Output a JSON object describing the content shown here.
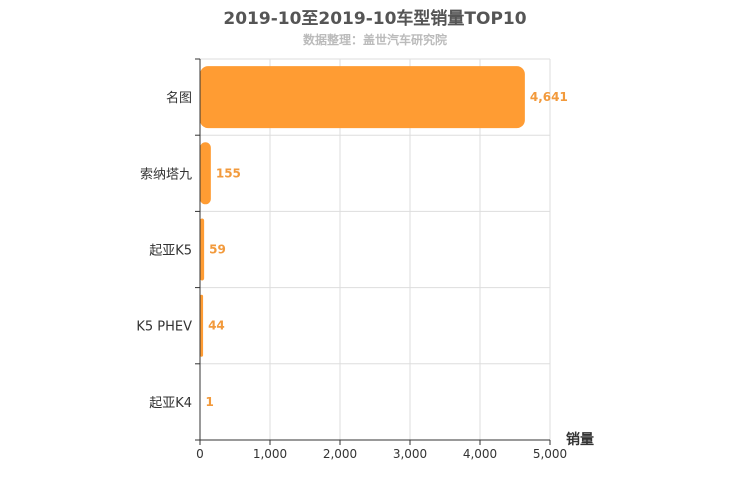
{
  "chart_data": {
    "type": "bar",
    "orientation": "horizontal",
    "title": "2019-10至2019-10车型销量TOP10",
    "subtitle": "数据整理：盖世汽车研究院",
    "xlabel": "销量",
    "ylabel": "",
    "categories": [
      "名图",
      "索纳塔九",
      "起亚K5",
      "K5 PHEV",
      "起亚K4"
    ],
    "values": [
      4641,
      155,
      59,
      44,
      1
    ],
    "value_labels": [
      "4,641",
      "155",
      "59",
      "44",
      "1"
    ],
    "xlim": [
      0,
      5000
    ],
    "xticks": [
      0,
      1000,
      2000,
      3000,
      4000,
      5000
    ],
    "xtick_labels": [
      "0",
      "1,000",
      "2,000",
      "3,000",
      "4,000",
      "5,000"
    ],
    "grid": true,
    "bar_color": "#ff9c33",
    "label_color": "#f29a3c"
  }
}
